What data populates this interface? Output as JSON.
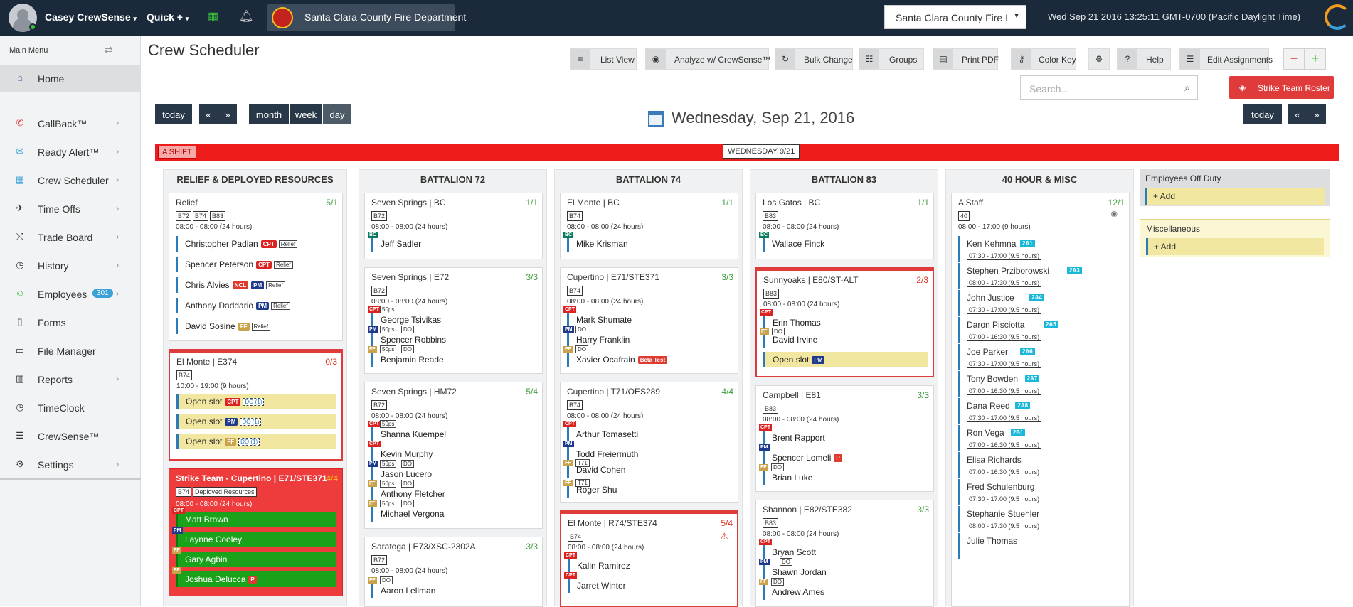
{
  "topbar": {
    "user": "Casey CrewSense",
    "quick": "Quick +",
    "department": "Santa Clara County Fire Department",
    "dept_select": "Santa Clara County Fire I",
    "datetime": "Wed Sep 21 2016 13:25:11 GMT-0700 (Pacific Daylight Time)"
  },
  "sidebar": {
    "title": "Main Menu",
    "items": [
      {
        "label": "Home",
        "icon": "home-icon"
      },
      {
        "label": "CallBack™",
        "icon": "phone-icon"
      },
      {
        "label": "Ready Alert™",
        "icon": "envelope-icon"
      },
      {
        "label": "Crew Scheduler",
        "icon": "calendar-icon"
      },
      {
        "label": "Time Offs",
        "icon": "plane-icon"
      },
      {
        "label": "Trade Board",
        "icon": "shuffle-icon"
      },
      {
        "label": "History",
        "icon": "clock-icon"
      },
      {
        "label": "Employees",
        "icon": "user-icon",
        "badge": "301"
      },
      {
        "label": "Forms",
        "icon": "file-icon"
      },
      {
        "label": "File Manager",
        "icon": "folder-icon"
      },
      {
        "label": "Reports",
        "icon": "bar-chart-icon"
      },
      {
        "label": "TimeClock",
        "icon": "clock-icon"
      },
      {
        "label": "CrewSense™",
        "icon": "list-icon"
      },
      {
        "label": "Settings",
        "icon": "cogs-icon"
      }
    ]
  },
  "page": {
    "title": "Crew Scheduler"
  },
  "toolbar": {
    "list_view": "List View",
    "analyze": "Analyze w/ CrewSense™",
    "bulk": "Bulk Change",
    "groups": "Groups",
    "print": "Print PDF",
    "color_key": "Color Key",
    "help": "Help",
    "edit": "Edit Assignments",
    "zoom_out": "−",
    "zoom_in": "+"
  },
  "search": {
    "placeholder": "Search..."
  },
  "strike_roster": "Strike Team Roster",
  "calnav": {
    "today": "today",
    "prev": "«",
    "next": "»",
    "month": "month",
    "week": "week",
    "day": "day",
    "title": "Wednesday, Sep 21, 2016"
  },
  "shift": {
    "label": "A SHIFT",
    "day": "WEDNESDAY 9/21"
  },
  "columns": {
    "relief": "RELIEF & DEPLOYED RESOURCES",
    "b72": "BATTALION 72",
    "b74": "BATTALION 74",
    "b83": "BATTALION 83",
    "misc": "40 HOUR & MISC"
  },
  "c1": {
    "relief": {
      "title": "Relief",
      "count": "5/1",
      "tags": [
        "B72",
        "B74",
        "B83"
      ],
      "hours": "08:00 - 08:00 (24 hours)",
      "rows": [
        {
          "name": "Christopher Padian",
          "rank": "CPT",
          "tag": "Relief"
        },
        {
          "name": "Spencer Peterson",
          "rank": "CPT",
          "tag": "Relief"
        },
        {
          "name": "Chris Alvies",
          "rank": "NCL",
          "rank2": "PM",
          "tag": "Relief"
        },
        {
          "name": "Anthony Daddario",
          "rank": "PM",
          "tag": "Relief"
        },
        {
          "name": "David Sosine",
          "rank": "FF",
          "tag": "Relief"
        }
      ]
    },
    "e374": {
      "title": "El Monte | E374",
      "count": "0/3",
      "tags": [
        "B74"
      ],
      "hours": "10:00 - 19:00 (9 hours)",
      "open": "Open slot",
      "rows": [
        {
          "rank": "CPT",
          "tag": "DO (1)"
        },
        {
          "rank": "PM",
          "tag": "DO (1)"
        },
        {
          "rank": "FF",
          "tag": "DO (1)"
        }
      ]
    },
    "strike": {
      "title": "Strike Team - Cupertino | E71/STE371",
      "count": "4/4",
      "tags": [
        "B74",
        "Deployed Resources"
      ],
      "hours": "08:00 - 08:00 (24 hours)",
      "rows": [
        {
          "name": "Matt Brown",
          "rank": "CPT"
        },
        {
          "name": "Laynne Cooley",
          "rank": "PM"
        },
        {
          "name": "Gary Agbin",
          "rank": "FF"
        },
        {
          "name": "Joshua Delucca",
          "rank": "FF",
          "extra": "P"
        }
      ]
    }
  },
  "c2": {
    "bc": {
      "title": "Seven Springs | BC",
      "count": "1/1",
      "tag": "B72",
      "hours": "08:00 - 08:00 (24 hours)",
      "rows": [
        {
          "name": "Jeff Sadler",
          "rank": "BC"
        }
      ]
    },
    "e72": {
      "title": "Seven Springs | E72",
      "count": "3/3",
      "tag": "B72",
      "hours": "08:00 - 08:00 (24 hours)",
      "rows": [
        {
          "name": "George Tsivikas",
          "rank": "CPT",
          "t1": "50ps"
        },
        {
          "name": "Spencer Robbins",
          "rank": "PM",
          "t1": "50ps",
          "t2": "DO"
        },
        {
          "name": "Benjamin Reade",
          "rank": "FF",
          "t1": "50ps",
          "t2": "DO"
        }
      ]
    },
    "hm72": {
      "title": "Seven Springs | HM72",
      "count": "5/4",
      "tag": "B72",
      "hours": "08:00 - 08:00 (24 hours)",
      "rows": [
        {
          "name": "Shanna Kuempel",
          "rank": "CPT",
          "t1": "50ps"
        },
        {
          "name": "Kevin Murphy",
          "rank": "CPT"
        },
        {
          "name": "Jason Lucero",
          "rank": "PM",
          "t1": "50ps",
          "t2": "DO"
        },
        {
          "name": "Anthony Fletcher",
          "rank": "FF",
          "t1": "50ps",
          "t2": "DO"
        },
        {
          "name": "Michael Vergona",
          "rank": "FF",
          "t1": "50ps",
          "t2": "DO"
        }
      ]
    },
    "e73": {
      "title": "Saratoga | E73/XSC-2302A",
      "count": "3/3",
      "tag": "B72",
      "hours": "08:00 - 08:00 (24 hours)",
      "rows": [
        {
          "name": "Aaron Lellman",
          "rank": "FF",
          "t1": "DO"
        }
      ]
    }
  },
  "c3": {
    "bc": {
      "title": "El Monte | BC",
      "count": "1/1",
      "tag": "B74",
      "hours": "08:00 - 08:00 (24 hours)",
      "rows": [
        {
          "name": "Mike Krisman",
          "rank": "BC"
        }
      ]
    },
    "e71": {
      "title": "Cupertino | E71/STE371",
      "count": "3/3",
      "tag": "B74",
      "hours": "08:00 - 08:00 (24 hours)",
      "rows": [
        {
          "name": "Mark Shumate",
          "rank": "CPT"
        },
        {
          "name": "Harry Franklin",
          "rank": "PM",
          "t1": "DO"
        },
        {
          "name": "Xavier Ocafrain",
          "rank": "FF",
          "t1": "DO",
          "beta": "Beta Test"
        }
      ]
    },
    "t71": {
      "title": "Cupertino | T71/OES289",
      "count": "4/4",
      "tag": "B74",
      "hours": "08:00 - 08:00 (24 hours)",
      "rows": [
        {
          "name": "Arthur Tomasetti",
          "rank": "CPT"
        },
        {
          "name": "Todd Freiermuth",
          "rank": "PM"
        },
        {
          "name": "David Cohen",
          "rank": "FF",
          "t1": "T71"
        },
        {
          "name": "Roger Shu",
          "rank": "FF",
          "t1": "T71"
        }
      ]
    },
    "r74": {
      "title": "El Monte | R74/STE374",
      "count": "5/4",
      "tag": "B74",
      "hours": "08:00 - 08:00 (24 hours)",
      "rows": [
        {
          "name": "Kalin Ramirez",
          "rank": "CPT"
        },
        {
          "name": "Jarret Winter",
          "rank": "CPT"
        }
      ]
    }
  },
  "c4": {
    "bc": {
      "title": "Los Gatos | BC",
      "count": "1/1",
      "tag": "B83",
      "hours": "08:00 - 08:00 (24 hours)",
      "rows": [
        {
          "name": "Wallace Finck",
          "rank": "BC"
        }
      ]
    },
    "e80": {
      "title": "Sunnyoaks | E80/ST-ALT",
      "count": "2/3",
      "tag": "B83",
      "hours": "08:00 - 08:00 (24 hours)",
      "rows": [
        {
          "name": "Erin Thomas",
          "rank": "CPT"
        },
        {
          "name": "David Irvine",
          "rank": "FF",
          "t1": "DO"
        }
      ],
      "open": "Open slot",
      "open_rank": "PM"
    },
    "e81": {
      "title": "Campbell | E81",
      "count": "3/3",
      "tag": "B83",
      "hours": "08:00 - 08:00 (24 hours)",
      "rows": [
        {
          "name": "Brent Rapport",
          "rank": "CPT"
        },
        {
          "name": "Spencer Lomeli",
          "rank": "PM",
          "extra": "P"
        },
        {
          "name": "Brian Luke",
          "rank": "FF",
          "t1": "DO"
        }
      ]
    },
    "e82": {
      "title": "Shannon | E82/STE382",
      "count": "3/3",
      "tag": "B83",
      "hours": "08:00 - 08:00 (24 hours)",
      "rows": [
        {
          "name": "Bryan Scott",
          "rank": "CPT"
        },
        {
          "name": "Shawn Jordan",
          "rank": "PM",
          "t1": "DO"
        },
        {
          "name": "Andrew Ames",
          "rank": "FF",
          "t1": "DO"
        }
      ]
    }
  },
  "c5": {
    "title": "A Staff",
    "count": "12/1",
    "tag": "40",
    "hours": "08:00 - 17:00 (9 hours)",
    "rows": [
      {
        "name": "Ken Kehmna",
        "sq": "2A1",
        "sh": "07:30 - 17:00 (9.5 hours)"
      },
      {
        "name": "Stephen Prziborowski",
        "sq": "2A3",
        "sh": "08:00 - 17:30 (9.5 hours)"
      },
      {
        "name": "John Justice",
        "sq": "2A4",
        "sh": "07:30 - 17:00 (9.5 hours)"
      },
      {
        "name": "Daron Pisciotta",
        "sq": "2A5",
        "sh": "07:00 - 16:30 (9.5 hours)"
      },
      {
        "name": "Joe Parker",
        "sq": "2A6",
        "sh": "07:30 - 17:00 (9.5 hours)"
      },
      {
        "name": "Tony Bowden",
        "sq": "2A7",
        "sh": "07:00 - 16:30 (9.5 hours)"
      },
      {
        "name": "Dana Reed",
        "sq": "2A8",
        "sh": "07:30 - 17:00 (9.5 hours)"
      },
      {
        "name": "Ron Vega",
        "sq": "2B1",
        "sh": "07:00 - 16:30 (9.5 hours)"
      },
      {
        "name": "Elisa Richards",
        "sq": "",
        "sh": "07:00 - 16:30 (9.5 hours)"
      },
      {
        "name": "Fred Schulenburg",
        "sq": "",
        "sh": "07:30 - 17:00 (9.5 hours)"
      },
      {
        "name": "Stephanie Stuehler",
        "sq": "",
        "sh": "08:00 - 17:30 (9.5 hours)"
      },
      {
        "name": "Julie Thomas",
        "sq": "",
        "sh": ""
      }
    ]
  },
  "side": {
    "off_duty": "Employees Off Duty",
    "misc": "Miscellaneous",
    "add": "+ Add"
  }
}
